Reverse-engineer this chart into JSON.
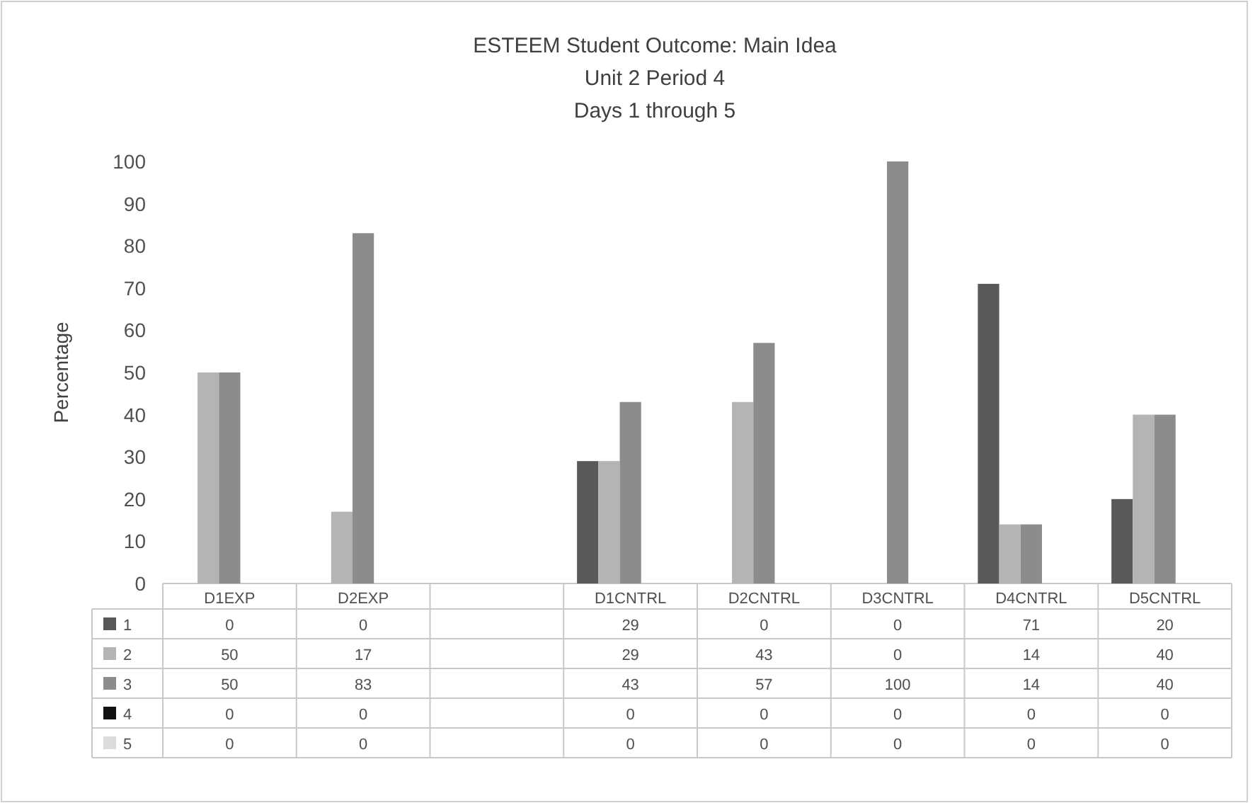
{
  "chart_data": {
    "type": "bar",
    "title": "ESTEEM Student Outcome: Main Idea",
    "subtitle": "Unit 2 Period 4\nDays 1 through 5",
    "ylabel": "Percentage",
    "categories": [
      "D1EXP",
      "D2EXP",
      null,
      "D1CNTRL",
      "D2CNTRL",
      "D3CNTRL",
      "D4CNTRL",
      "D5CNTRL"
    ],
    "series": [
      {
        "name": "1",
        "color": "#595959",
        "values": [
          0,
          0,
          null,
          29,
          0,
          0,
          71,
          20
        ]
      },
      {
        "name": "2",
        "color": "#b4b4b4",
        "values": [
          50,
          17,
          null,
          29,
          43,
          0,
          14,
          40
        ]
      },
      {
        "name": "3",
        "color": "#8c8c8c",
        "values": [
          50,
          83,
          null,
          43,
          57,
          100,
          14,
          40
        ]
      },
      {
        "name": "4",
        "color": "#111111",
        "values": [
          0,
          0,
          null,
          0,
          0,
          0,
          0,
          0
        ]
      },
      {
        "name": "5",
        "color": "#dcdcdc",
        "values": [
          0,
          0,
          null,
          0,
          0,
          0,
          0,
          0
        ]
      }
    ],
    "ylim": [
      0,
      100
    ],
    "yticks": [
      0,
      10,
      20,
      30,
      40,
      50,
      60,
      70,
      80,
      90,
      100
    ],
    "data_labels": true,
    "legend": "bottom"
  }
}
